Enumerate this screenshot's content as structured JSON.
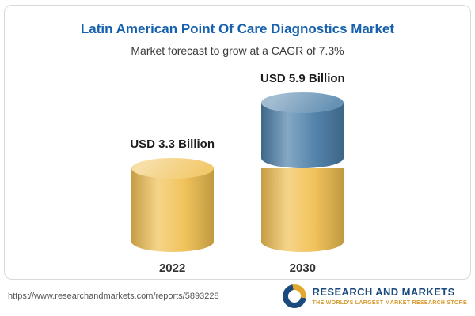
{
  "header": {
    "title": "Latin American Point Of Care Diagnostics Market",
    "subtitle": "Market forecast to grow at a CAGR of 7.3%"
  },
  "chart_data": {
    "type": "bar",
    "title": "Latin American Point Of Care Diagnostics Market",
    "subtitle": "Market forecast to grow at a CAGR of 7.3%",
    "unit": "USD Billion",
    "cagr": "7.3%",
    "categories": [
      "2022",
      "2030"
    ],
    "values": [
      3.3,
      5.9
    ],
    "legend_position": "none",
    "grid": false,
    "bars": [
      {
        "category": "2022",
        "label": "USD 3.3 Billion",
        "total": 3.3,
        "segments": [
          {
            "name": "base",
            "value": 3.3,
            "color": "#F0C053"
          }
        ]
      },
      {
        "category": "2030",
        "label": "USD 5.9 Billion",
        "total": 5.9,
        "segments": [
          {
            "name": "base",
            "value": 3.3,
            "color": "#F0C053"
          },
          {
            "name": "growth",
            "value": 2.6,
            "color": "#4C7FA8"
          }
        ]
      }
    ],
    "colors": {
      "gold": "#F0C053",
      "blue": "#4C7FA8",
      "title_blue": "#1661ae"
    }
  },
  "footer": {
    "url": "https://www.researchandmarkets.com/reports/5893228",
    "logo": {
      "name": "RESEARCH AND MARKETS",
      "tagline": "THE WORLD'S LARGEST MARKET RESEARCH STORE"
    }
  }
}
